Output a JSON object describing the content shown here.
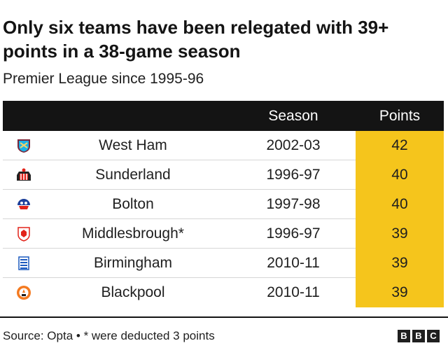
{
  "title": "Only six teams have been relegated with 39+ points in a 38-game season",
  "subtitle": "Premier League since 1995-96",
  "table": {
    "headers": {
      "team": "",
      "season": "Season",
      "points": "Points"
    },
    "rows": [
      {
        "team": "West Ham",
        "season": "2002-03",
        "points": "42",
        "crest": "west-ham-crest-icon"
      },
      {
        "team": "Sunderland",
        "season": "1996-97",
        "points": "40",
        "crest": "sunderland-crest-icon"
      },
      {
        "team": "Bolton",
        "season": "1997-98",
        "points": "40",
        "crest": "bolton-crest-icon"
      },
      {
        "team": "Middlesbrough*",
        "season": "1996-97",
        "points": "39",
        "crest": "middlesbrough-crest-icon"
      },
      {
        "team": "Birmingham",
        "season": "2010-11",
        "points": "39",
        "crest": "birmingham-crest-icon"
      },
      {
        "team": "Blackpool",
        "season": "2010-11",
        "points": "39",
        "crest": "blackpool-crest-icon"
      }
    ]
  },
  "source": "Source: Opta • * were deducted 3 points",
  "logo": [
    "B",
    "B",
    "C"
  ],
  "colors": {
    "header_bg": "#141414",
    "points_bg": "#f5c51c"
  }
}
